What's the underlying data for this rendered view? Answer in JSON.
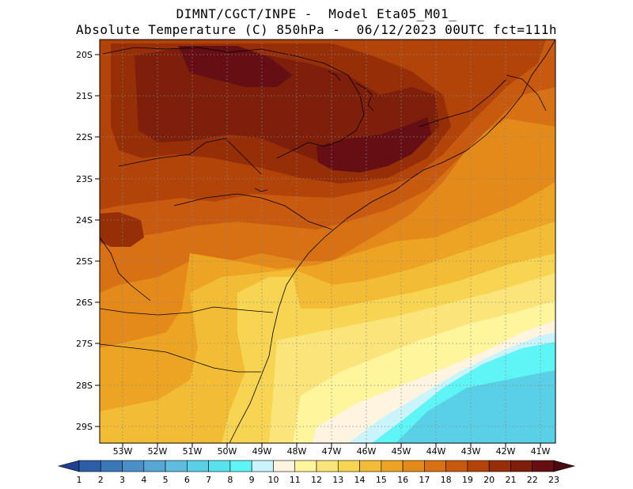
{
  "header": {
    "line1": "DIMNT/CGCT/INPE -  Model Eta05_M01_",
    "line2": "Absolute Temperature (C) 850hPa -  06/12/2023 00UTC fct=111h"
  },
  "map": {
    "lat_labels": [
      "20S",
      "21S",
      "22S",
      "23S",
      "24S",
      "25S",
      "26S",
      "27S",
      "28S",
      "29S"
    ],
    "lon_labels": [
      "53W",
      "52W",
      "51W",
      "50W",
      "49W",
      "48W",
      "47W",
      "46W",
      "45W",
      "44W",
      "43W",
      "42W",
      "41W"
    ]
  },
  "colorbar": {
    "labels": [
      "1",
      "2",
      "3",
      "4",
      "5",
      "6",
      "7",
      "8",
      "9",
      "10",
      "11",
      "12",
      "13",
      "14",
      "15",
      "16",
      "17",
      "18",
      "19",
      "20",
      "21",
      "22",
      "23"
    ],
    "colors": [
      "#1f3f8f",
      "#2b5fa8",
      "#3a78b8",
      "#4a8fc8",
      "#56a6d6",
      "#5fbce0",
      "#5ad0e6",
      "#58e2ee",
      "#5ff4f6",
      "#c9f4fb",
      "#fff4e0",
      "#fff59c",
      "#fbe57a",
      "#f7d452",
      "#f2bd35",
      "#eda422",
      "#e38a1a",
      "#d87014",
      "#c75a0f",
      "#b2440a",
      "#962f08",
      "#7d1f0a",
      "#650f14",
      "#4a0a10"
    ]
  }
}
